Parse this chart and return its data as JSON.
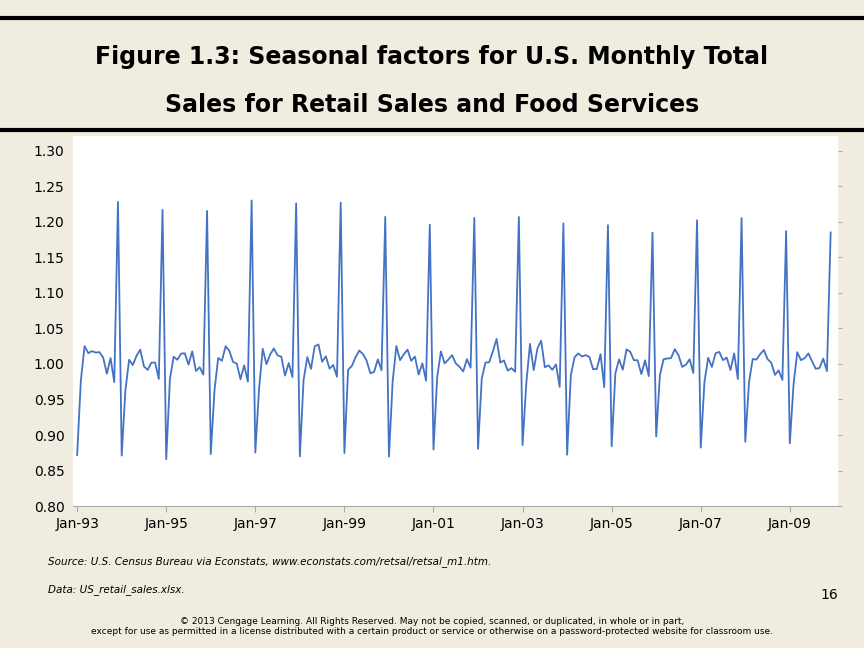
{
  "title_line1": "Figure 1.3: Seasonal factors for U.S. Monthly Total",
  "title_line2": "Sales for Retail Sales and Food Services",
  "title_bg_color": "#7a9a9a",
  "top_strip_color": "#d4cf8a",
  "chart_bg_color": "#ffffff",
  "outer_bg_color": "#f0ede0",
  "footer_bg_color": "#7a9a9a",
  "line_color": "#4472c4",
  "line_width": 1.3,
  "ylim": [
    0.8,
    1.32
  ],
  "yticks": [
    0.8,
    0.85,
    0.9,
    0.95,
    1.0,
    1.05,
    1.1,
    1.15,
    1.2,
    1.25,
    1.3
  ],
  "xtick_labels": [
    "Jan-93",
    "Jan-95",
    "Jan-97",
    "Jan-99",
    "Jan-01",
    "Jan-03",
    "Jan-05",
    "Jan-07",
    "Jan-09"
  ],
  "xtick_positions": [
    0,
    24,
    48,
    72,
    96,
    120,
    144,
    168,
    192
  ],
  "page_number": "16",
  "footer_text": "© 2013 Cengage Learning. All Rights Reserved. May not be copied, scanned, or duplicated, in whole or in part,\nexcept for use as permitted in a license distributed with a certain product or service or otherwise on a password-protected website for classroom use.",
  "seasonal_pattern": [
    0.868,
    0.978,
    1.02,
    1.003,
    1.02,
    1.018,
    1.004,
    1.003,
    0.99,
    1.004,
    0.978,
    1.235
  ],
  "noise_scale": 0.008,
  "n_months": 204
}
